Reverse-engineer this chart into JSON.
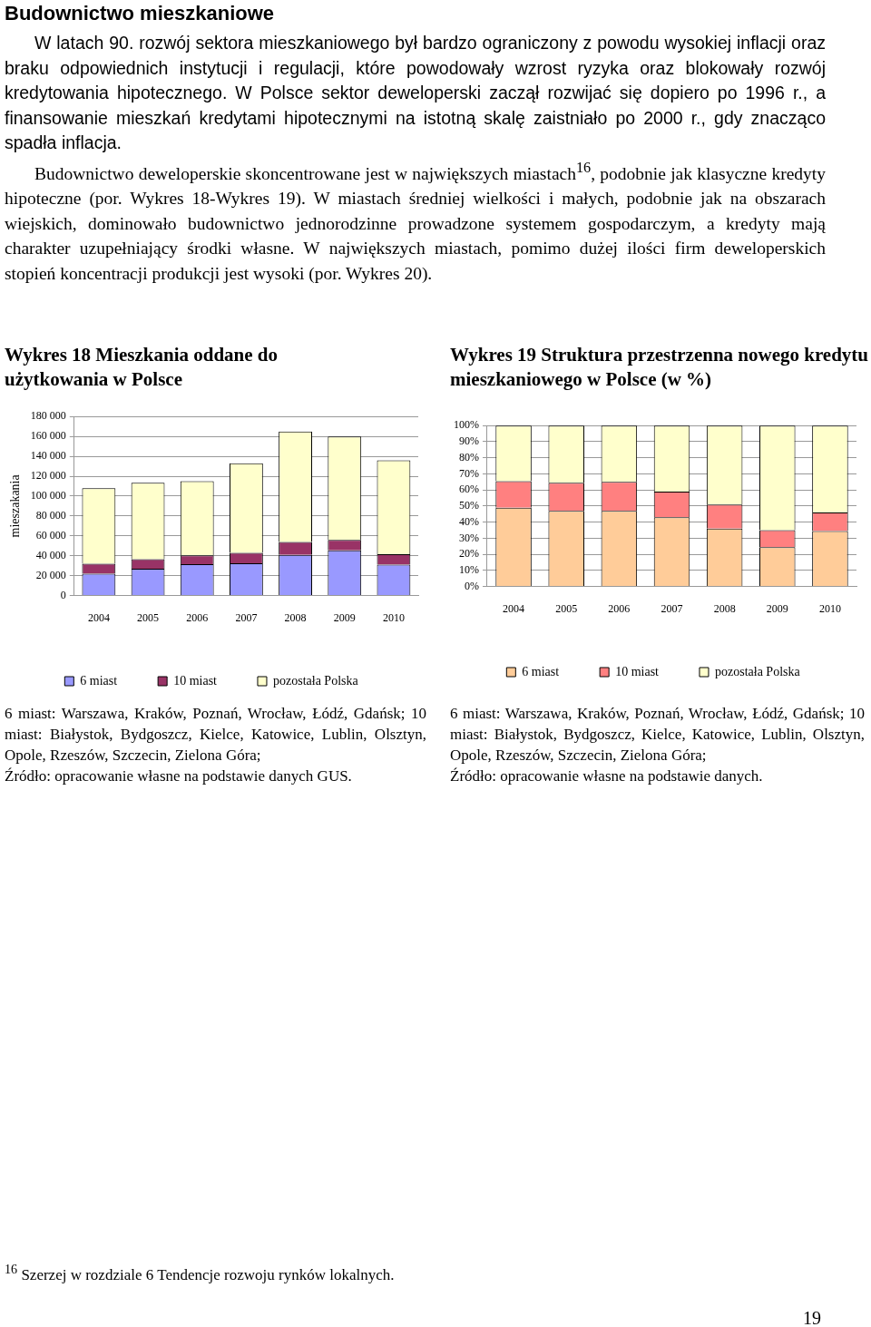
{
  "chart_data": [
    {
      "type": "other",
      "title": "Budownictwo mieszkaniowe",
      "annotations": [
        "W latach 90. rozwój sektora mieszkaniowego był bardzo ograniczony z powodu wysokiej inflacji oraz braku odpowiednich instytucji i regulacji, które powodowały wzrost ryzyka oraz blokowały rozwój kredytowania hipotecznego. W Polsce sektor deweloperski zaczął rozwijać się dopiero po 1996 r., a finansowanie mieszkań kredytami hipotecznymi na istotną skalę zaistniało po 2000 r., gdy znacząco spadła inflacja.",
        "Budownictwo deweloperskie skoncentrowane jest w największych miastach$^{16}$, podobnie jak klasyczne kredyty hipoteczne (por. Wykres 18-Wykres 19). W miastach średniej wielkości i małych, podobnie jak na obszarach wiejskich, dominowało budownictwo jednorodzinne prowadzone systemem gospodarczym, a kredyty mają charakter uzupełniający środki własne. W największych miastach, pomimo dużej ilości firm deweloperskich stopień koncentracji produkcji jest wysoki (por. Wykres 20).",
        "$^{16}$ Szerzej w rozdziale 6 Tendencje rozwoju rynków lokalnych.",
        "19"
      ]
    },
    {
      "type": "bar",
      "stacked": true,
      "title": "Wykres 18 Mieszkania oddane do użytkowania w Polsce",
      "ylabel": "mieszakania",
      "categories": [
        "2004",
        "2005",
        "2006",
        "2007",
        "2008",
        "2009",
        "2010"
      ],
      "series": [
        {
          "name": "6 miast",
          "color": "#9999ff",
          "values": [
            22000,
            27000,
            31500,
            32500,
            41000,
            45500,
            31000
          ]
        },
        {
          "name": "10 miast",
          "color": "#993366",
          "values": [
            10000,
            9500,
            9000,
            10500,
            13000,
            10500,
            10500
          ]
        },
        {
          "name": "pozostała Polska",
          "color": "#ffffcc",
          "values": [
            76000,
            77000,
            74500,
            90000,
            111000,
            104000,
            94500
          ]
        }
      ],
      "ylim": [
        0,
        180000
      ],
      "yticks": [
        0,
        {
          "value": 20000,
          "label": "20 000"
        },
        {
          "value": 40000,
          "label": "40 000"
        },
        {
          "value": 60000,
          "label": "60 000"
        },
        {
          "value": 80000,
          "label": "80 000"
        },
        {
          "value": 100000,
          "label": "100 000"
        },
        {
          "value": 120000,
          "label": "120 000"
        },
        {
          "value": 140000,
          "label": "140 000"
        },
        {
          "value": 160000,
          "label": "160 000"
        },
        {
          "value": 180000,
          "label": "180 000"
        }
      ],
      "grid": "y",
      "legend": "bottom",
      "annotations": [
        "6 miast: Warszawa, Kraków, Poznań, Wrocław, Łódź, Gdańsk; 10 miast: Białystok, Bydgoszcz, Kielce, Katowice, Lublin, Olsztyn, Opole, Rzeszów, Szczecin, Zielona Góra;",
        "Źródło: opracowanie własne na podstawie danych GUS."
      ]
    },
    {
      "type": "bar",
      "stacked": true,
      "title": "Wykres 19 Struktura przestrzenna nowego kredytu mieszkaniowego w Polsce (w %)",
      "categories": [
        "2004",
        "2005",
        "2006",
        "2007",
        "2008",
        "2009",
        "2010"
      ],
      "series": [
        {
          "name": "6 miast",
          "color": "#ffcc99",
          "values": [
            49,
            47,
            47,
            43,
            36,
            24.5,
            34.5
          ]
        },
        {
          "name": "10 miast",
          "color": "#ff8080",
          "values": [
            16.5,
            17.5,
            18,
            16,
            15,
            10.5,
            11.5
          ]
        },
        {
          "name": "pozostała Polska",
          "color": "#ffffcc",
          "values": [
            34.5,
            35.5,
            35,
            41,
            49,
            65,
            54
          ]
        }
      ],
      "ylim": [
        0,
        100
      ],
      "yticks": [
        {
          "value": 0,
          "label": "0%"
        },
        {
          "value": 10,
          "label": "10%"
        },
        {
          "value": 20,
          "label": "20%"
        },
        {
          "value": 30,
          "label": "30%"
        },
        {
          "value": 40,
          "label": "40%"
        },
        {
          "value": 50,
          "label": "50%"
        },
        {
          "value": 60,
          "label": "60%"
        },
        {
          "value": 70,
          "label": "70%"
        },
        {
          "value": 80,
          "label": "80%"
        },
        {
          "value": 90,
          "label": "90%"
        },
        {
          "value": 100,
          "label": "100%"
        }
      ],
      "grid": "y",
      "legend": "bottom",
      "annotations": [
        "6 miast: Warszawa, Kraków, Poznań, Wrocław, Łódź, Gdańsk; 10 miast: Białystok, Bydgoszcz, Kielce, Katowice, Lublin, Olsztyn, Opole, Rzeszów, Szczecin, Zielona Góra;",
        "Źródło: opracowanie własne na podstawie danych."
      ]
    }
  ]
}
